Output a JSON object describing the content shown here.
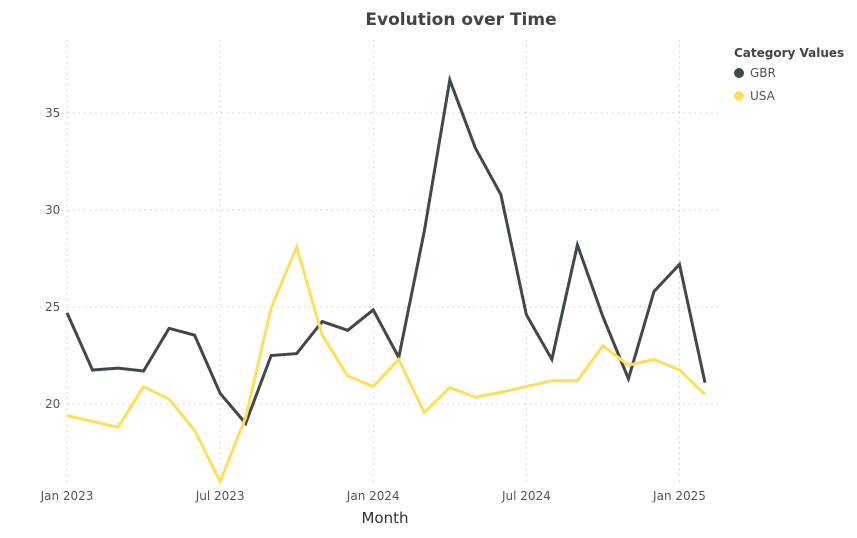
{
  "chart_data": {
    "type": "line",
    "title": "Evolution over Time",
    "xlabel": "Month",
    "ylabel": "",
    "x": [
      "2023-01",
      "2023-02",
      "2023-03",
      "2023-04",
      "2023-05",
      "2023-06",
      "2023-07",
      "2023-08",
      "2023-09",
      "2023-10",
      "2023-11",
      "2023-12",
      "2024-01",
      "2024-02",
      "2024-03",
      "2024-04",
      "2024-05",
      "2024-06",
      "2024-07",
      "2024-08",
      "2024-09",
      "2024-10",
      "2024-11",
      "2024-12",
      "2025-01",
      "2025-02"
    ],
    "x_ticks": [
      {
        "index": 0,
        "label": "Jan 2023"
      },
      {
        "index": 6,
        "label": "Jul 2023"
      },
      {
        "index": 12,
        "label": "Jan 2024"
      },
      {
        "index": 18,
        "label": "Jul 2024"
      },
      {
        "index": 24,
        "label": "Jan 2025"
      }
    ],
    "y_ticks": [
      20,
      25,
      30,
      35
    ],
    "ylim": [
      15.5,
      38.5
    ],
    "grid": true,
    "legend": {
      "title": "Category Values",
      "placement": "top-right"
    },
    "series": [
      {
        "name": "GBR",
        "color": "#41474a",
        "values": [
          24.7,
          21.75,
          21.85,
          21.7,
          23.9,
          23.55,
          20.55,
          19.0,
          22.5,
          22.6,
          24.25,
          23.8,
          24.85,
          22.4,
          28.9,
          36.7,
          33.2,
          30.8,
          24.6,
          22.3,
          28.2,
          24.5,
          21.3,
          25.8,
          27.2,
          21.1
        ]
      },
      {
        "name": "USA",
        "color": "#fddf5c",
        "values": [
          19.4,
          19.1,
          18.8,
          20.9,
          20.25,
          18.65,
          16.0,
          19.3,
          24.95,
          28.1,
          23.55,
          21.45,
          20.9,
          22.3,
          19.55,
          20.85,
          20.35,
          20.6,
          20.9,
          21.2,
          21.2,
          23.0,
          22.0,
          22.3,
          21.75,
          20.5
        ]
      }
    ]
  }
}
